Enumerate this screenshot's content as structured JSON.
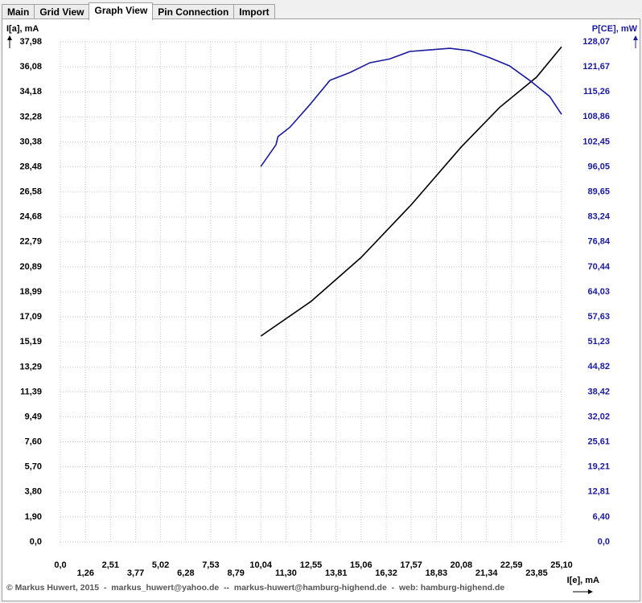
{
  "tabs": [
    "Main",
    "Grid View",
    "Graph View",
    "Pin Connection",
    "Import"
  ],
  "footer": "© Markus Huwert, 2015  -  markus_huwert@yahoo.de  --  markus-huwert@hamburg-highend.de  -  web: hamburg-highend.de",
  "chart_data": {
    "type": "line",
    "y_label": "I[a], mA",
    "y2_label": "P[CE], mW",
    "x_label": "I[e], mA",
    "xlim": [
      0,
      25.1
    ],
    "ylim": [
      0,
      37.98
    ],
    "y2lim": [
      0,
      128.07
    ],
    "grid": true,
    "xticks": [
      {
        "value": 0,
        "label": "0,0"
      },
      {
        "value": 1.26,
        "label": "1,26"
      },
      {
        "value": 2.51,
        "label": "2,51"
      },
      {
        "value": 3.77,
        "label": "3,77"
      },
      {
        "value": 5.02,
        "label": "5,02"
      },
      {
        "value": 6.28,
        "label": "6,28"
      },
      {
        "value": 7.53,
        "label": "7,53"
      },
      {
        "value": 8.79,
        "label": "8,79"
      },
      {
        "value": 10.04,
        "label": "10,04"
      },
      {
        "value": 11.3,
        "label": "11,30"
      },
      {
        "value": 12.55,
        "label": "12,55"
      },
      {
        "value": 13.81,
        "label": "13,81"
      },
      {
        "value": 15.06,
        "label": "15,06"
      },
      {
        "value": 16.32,
        "label": "16,32"
      },
      {
        "value": 17.57,
        "label": "17,57"
      },
      {
        "value": 18.83,
        "label": "18,83"
      },
      {
        "value": 20.08,
        "label": "20,08"
      },
      {
        "value": 21.34,
        "label": "21,34"
      },
      {
        "value": 22.59,
        "label": "22,59"
      },
      {
        "value": 23.85,
        "label": "23,85"
      },
      {
        "value": 25.1,
        "label": "25,10"
      }
    ],
    "yticks": [
      {
        "value": 0,
        "label": "0,0"
      },
      {
        "value": 1.9,
        "label": "1,90"
      },
      {
        "value": 3.8,
        "label": "3,80"
      },
      {
        "value": 5.7,
        "label": "5,70"
      },
      {
        "value": 7.6,
        "label": "7,60"
      },
      {
        "value": 9.49,
        "label": "9,49"
      },
      {
        "value": 11.39,
        "label": "11,39"
      },
      {
        "value": 13.29,
        "label": "13,29"
      },
      {
        "value": 15.19,
        "label": "15,19"
      },
      {
        "value": 17.09,
        "label": "17,09"
      },
      {
        "value": 18.99,
        "label": "18,99"
      },
      {
        "value": 20.89,
        "label": "20,89"
      },
      {
        "value": 22.79,
        "label": "22,79"
      },
      {
        "value": 24.68,
        "label": "24,68"
      },
      {
        "value": 26.58,
        "label": "26,58"
      },
      {
        "value": 28.48,
        "label": "28,48"
      },
      {
        "value": 30.38,
        "label": "30,38"
      },
      {
        "value": 32.28,
        "label": "32,28"
      },
      {
        "value": 34.18,
        "label": "34,18"
      },
      {
        "value": 36.08,
        "label": "36,08"
      },
      {
        "value": 37.98,
        "label": "37,98"
      }
    ],
    "y2ticks": [
      {
        "value": 0,
        "label": "0,0"
      },
      {
        "value": 6.4,
        "label": "6,40"
      },
      {
        "value": 12.81,
        "label": "12,81"
      },
      {
        "value": 19.21,
        "label": "19,21"
      },
      {
        "value": 25.61,
        "label": "25,61"
      },
      {
        "value": 32.02,
        "label": "32,02"
      },
      {
        "value": 38.42,
        "label": "38,42"
      },
      {
        "value": 44.82,
        "label": "44,82"
      },
      {
        "value": 51.23,
        "label": "51,23"
      },
      {
        "value": 57.63,
        "label": "57,63"
      },
      {
        "value": 64.03,
        "label": "64,03"
      },
      {
        "value": 70.44,
        "label": "70,44"
      },
      {
        "value": 76.84,
        "label": "76,84"
      },
      {
        "value": 83.24,
        "label": "83,24"
      },
      {
        "value": 89.65,
        "label": "89,65"
      },
      {
        "value": 96.05,
        "label": "96,05"
      },
      {
        "value": 102.45,
        "label": "102,45"
      },
      {
        "value": 108.86,
        "label": "108,86"
      },
      {
        "value": 115.26,
        "label": "115,26"
      },
      {
        "value": 121.67,
        "label": "121,67"
      },
      {
        "value": 128.07,
        "label": "128,07"
      }
    ],
    "series": [
      {
        "color": "#000000",
        "axis": "y",
        "x": [
          10.04,
          12.55,
          15.06,
          17.57,
          20.08,
          22.0,
          23.85,
          25.1
        ],
        "values": [
          15.63,
          18.26,
          21.6,
          25.6,
          30.0,
          33.0,
          35.3,
          37.6
        ]
      },
      {
        "color": "#1a1aa0",
        "axis": "y2",
        "x": [
          10.04,
          10.8,
          10.9,
          11.5,
          12.5,
          13.5,
          14.5,
          15.5,
          16.5,
          17.5,
          18.5,
          19.5,
          20.5,
          21.5,
          22.5,
          23.5,
          24.5,
          25.1
        ],
        "values": [
          96.15,
          101.7,
          103.8,
          106.2,
          112.0,
          118.2,
          120.2,
          122.7,
          123.7,
          125.6,
          126.0,
          126.4,
          125.8,
          124.0,
          121.9,
          118.2,
          114.1,
          109.5
        ]
      }
    ]
  }
}
